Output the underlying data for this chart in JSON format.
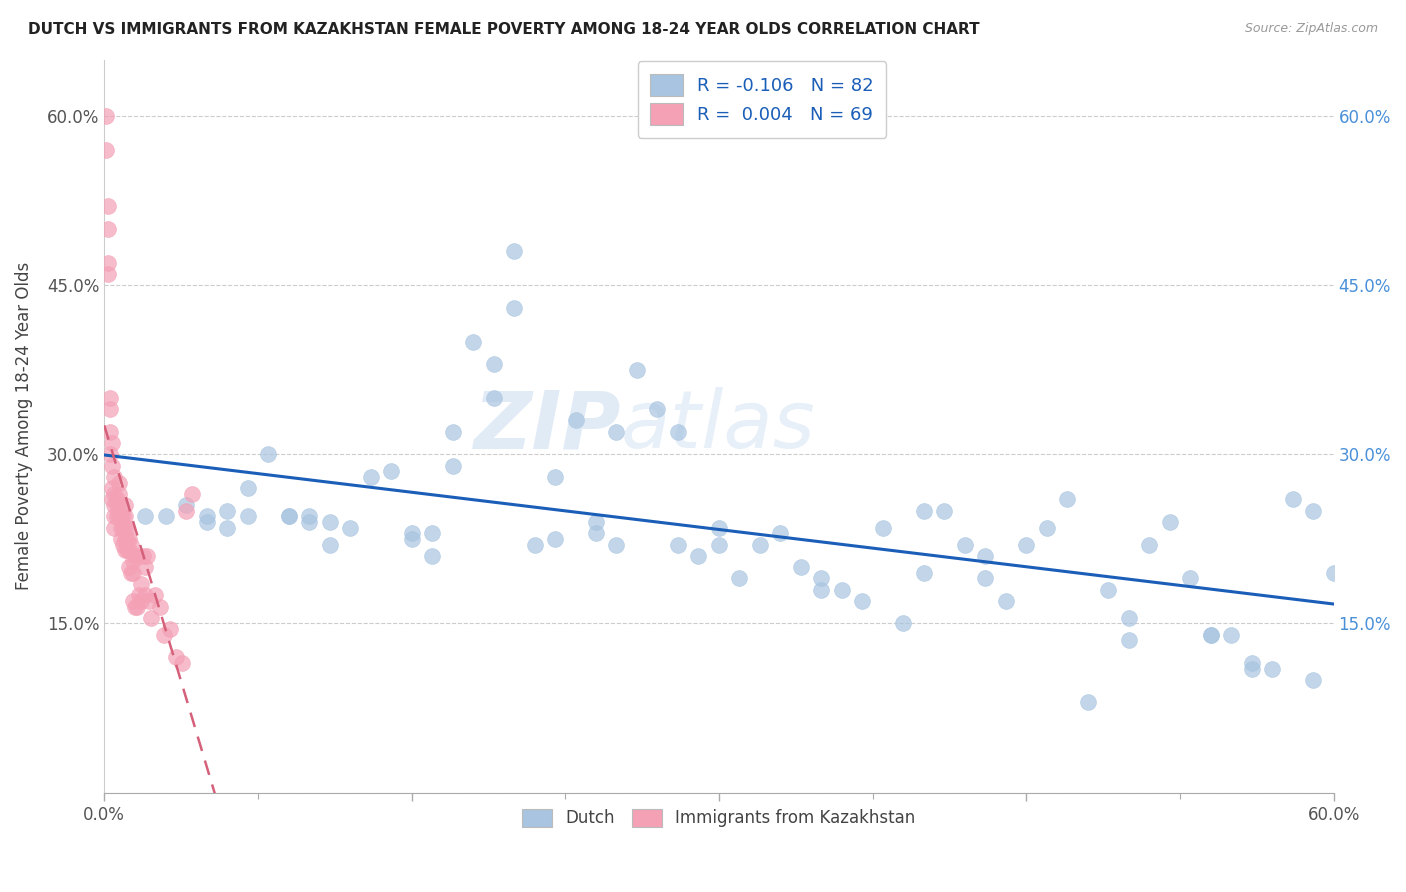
{
  "title": "DUTCH VS IMMIGRANTS FROM KAZAKHSTAN FEMALE POVERTY AMONG 18-24 YEAR OLDS CORRELATION CHART",
  "source": "Source: ZipAtlas.com",
  "ylabel": "Female Poverty Among 18-24 Year Olds",
  "xlim": [
    0.0,
    0.6
  ],
  "ylim": [
    0.0,
    0.65
  ],
  "dutch_color": "#a8c4e0",
  "kazakh_color": "#f4a0b5",
  "dutch_line_color": "#1a5eb8",
  "kazakh_line_color": "#d4607a",
  "background_color": "#ffffff",
  "watermark": "ZIPatlas",
  "legend_dutch_R": "-0.106",
  "legend_dutch_N": "82",
  "legend_kazakh_R": "0.004",
  "legend_kazakh_N": "69",
  "dutch_x": [
    0.02,
    0.03,
    0.04,
    0.05,
    0.05,
    0.06,
    0.06,
    0.07,
    0.07,
    0.08,
    0.09,
    0.09,
    0.1,
    0.1,
    0.11,
    0.11,
    0.12,
    0.13,
    0.14,
    0.15,
    0.15,
    0.16,
    0.17,
    0.17,
    0.18,
    0.19,
    0.2,
    0.2,
    0.21,
    0.22,
    0.23,
    0.24,
    0.25,
    0.26,
    0.27,
    0.28,
    0.29,
    0.3,
    0.31,
    0.32,
    0.33,
    0.34,
    0.35,
    0.36,
    0.37,
    0.38,
    0.39,
    0.4,
    0.41,
    0.42,
    0.43,
    0.44,
    0.45,
    0.46,
    0.47,
    0.48,
    0.49,
    0.5,
    0.51,
    0.52,
    0.53,
    0.54,
    0.55,
    0.56,
    0.57,
    0.58,
    0.59,
    0.6,
    0.25,
    0.28,
    0.19,
    0.22,
    0.16,
    0.24,
    0.3,
    0.35,
    0.4,
    0.43,
    0.5,
    0.54,
    0.56,
    0.59
  ],
  "dutch_y": [
    0.245,
    0.245,
    0.255,
    0.245,
    0.24,
    0.25,
    0.235,
    0.27,
    0.245,
    0.3,
    0.245,
    0.245,
    0.24,
    0.245,
    0.22,
    0.24,
    0.235,
    0.28,
    0.285,
    0.225,
    0.23,
    0.23,
    0.32,
    0.29,
    0.4,
    0.38,
    0.48,
    0.43,
    0.22,
    0.225,
    0.33,
    0.23,
    0.22,
    0.375,
    0.34,
    0.22,
    0.21,
    0.235,
    0.19,
    0.22,
    0.23,
    0.2,
    0.18,
    0.18,
    0.17,
    0.235,
    0.15,
    0.25,
    0.25,
    0.22,
    0.21,
    0.17,
    0.22,
    0.235,
    0.26,
    0.08,
    0.18,
    0.155,
    0.22,
    0.24,
    0.19,
    0.14,
    0.14,
    0.11,
    0.11,
    0.26,
    0.25,
    0.195,
    0.32,
    0.32,
    0.35,
    0.28,
    0.21,
    0.24,
    0.22,
    0.19,
    0.195,
    0.19,
    0.135,
    0.14,
    0.115,
    0.1
  ],
  "kazakh_x": [
    0.001,
    0.001,
    0.002,
    0.002,
    0.002,
    0.003,
    0.003,
    0.003,
    0.003,
    0.004,
    0.004,
    0.004,
    0.004,
    0.005,
    0.005,
    0.005,
    0.005,
    0.005,
    0.006,
    0.006,
    0.006,
    0.007,
    0.007,
    0.007,
    0.007,
    0.008,
    0.008,
    0.008,
    0.009,
    0.009,
    0.009,
    0.01,
    0.01,
    0.01,
    0.01,
    0.01,
    0.011,
    0.011,
    0.011,
    0.012,
    0.012,
    0.012,
    0.013,
    0.013,
    0.014,
    0.014,
    0.014,
    0.015,
    0.015,
    0.016,
    0.016,
    0.017,
    0.018,
    0.018,
    0.019,
    0.02,
    0.02,
    0.021,
    0.022,
    0.023,
    0.025,
    0.027,
    0.029,
    0.032,
    0.035,
    0.038,
    0.04,
    0.043,
    0.002
  ],
  "kazakh_y": [
    0.6,
    0.57,
    0.52,
    0.5,
    0.47,
    0.35,
    0.34,
    0.32,
    0.3,
    0.31,
    0.29,
    0.27,
    0.26,
    0.28,
    0.265,
    0.255,
    0.245,
    0.235,
    0.26,
    0.255,
    0.245,
    0.275,
    0.265,
    0.255,
    0.245,
    0.245,
    0.235,
    0.225,
    0.245,
    0.235,
    0.22,
    0.255,
    0.245,
    0.235,
    0.225,
    0.215,
    0.235,
    0.225,
    0.215,
    0.225,
    0.215,
    0.2,
    0.22,
    0.195,
    0.205,
    0.195,
    0.17,
    0.21,
    0.165,
    0.21,
    0.165,
    0.175,
    0.185,
    0.17,
    0.21,
    0.2,
    0.175,
    0.21,
    0.17,
    0.155,
    0.175,
    0.165,
    0.14,
    0.145,
    0.12,
    0.115,
    0.25,
    0.265,
    0.46
  ]
}
